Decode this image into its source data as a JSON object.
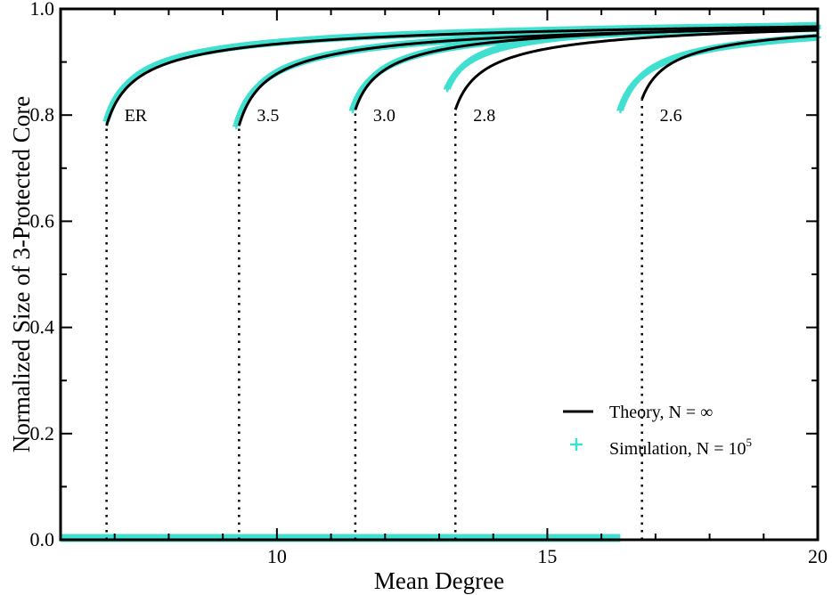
{
  "chart_data": {
    "type": "line",
    "title": "",
    "xlabel": "Mean Degree",
    "ylabel": "Normalized Size of 3-Protected Core",
    "xlim": [
      6,
      20
    ],
    "ylim": [
      0,
      1
    ],
    "xticks": [
      10,
      15,
      20
    ],
    "xtick_labels": [
      "10",
      "15",
      "20"
    ],
    "yticks": [
      0,
      0.2,
      0.4,
      0.6,
      0.8,
      1.0
    ],
    "ytick_labels": [
      "0.0",
      "0.2",
      "0.4",
      "0.6",
      "0.8",
      "1.0"
    ],
    "grid": false,
    "legend_position": "bottom-right",
    "legend": [
      {
        "kind": "line",
        "label": "Theory, N = ∞"
      },
      {
        "kind": "marker",
        "label": "Simulation, N = 10",
        "superscript": "5"
      }
    ],
    "colors": {
      "theory": "#000000",
      "simulation": "#40e0d0"
    },
    "series": [
      {
        "name": "ER",
        "critical_degree": 6.85,
        "jump_size": 0.78,
        "sim_onset": 6.85,
        "sim_start_value": 0.79
      },
      {
        "name": "3.5",
        "critical_degree": 9.3,
        "jump_size": 0.78,
        "sim_onset": 9.25,
        "sim_start_value": 0.78
      },
      {
        "name": "3.0",
        "critical_degree": 11.45,
        "jump_size": 0.81,
        "sim_onset": 11.4,
        "sim_start_value": 0.81
      },
      {
        "name": "2.8",
        "critical_degree": 13.3,
        "jump_size": 0.81,
        "sim_onset": 13.15,
        "sim_start_value": 0.85
      },
      {
        "name": "2.6",
        "critical_degree": 16.75,
        "jump_size": 0.83,
        "sim_onset": 16.35,
        "sim_start_value": 0.81
      }
    ],
    "simulation_zero_branch": {
      "x_start": 6,
      "x_end": 16.35,
      "value": 0.0
    }
  }
}
